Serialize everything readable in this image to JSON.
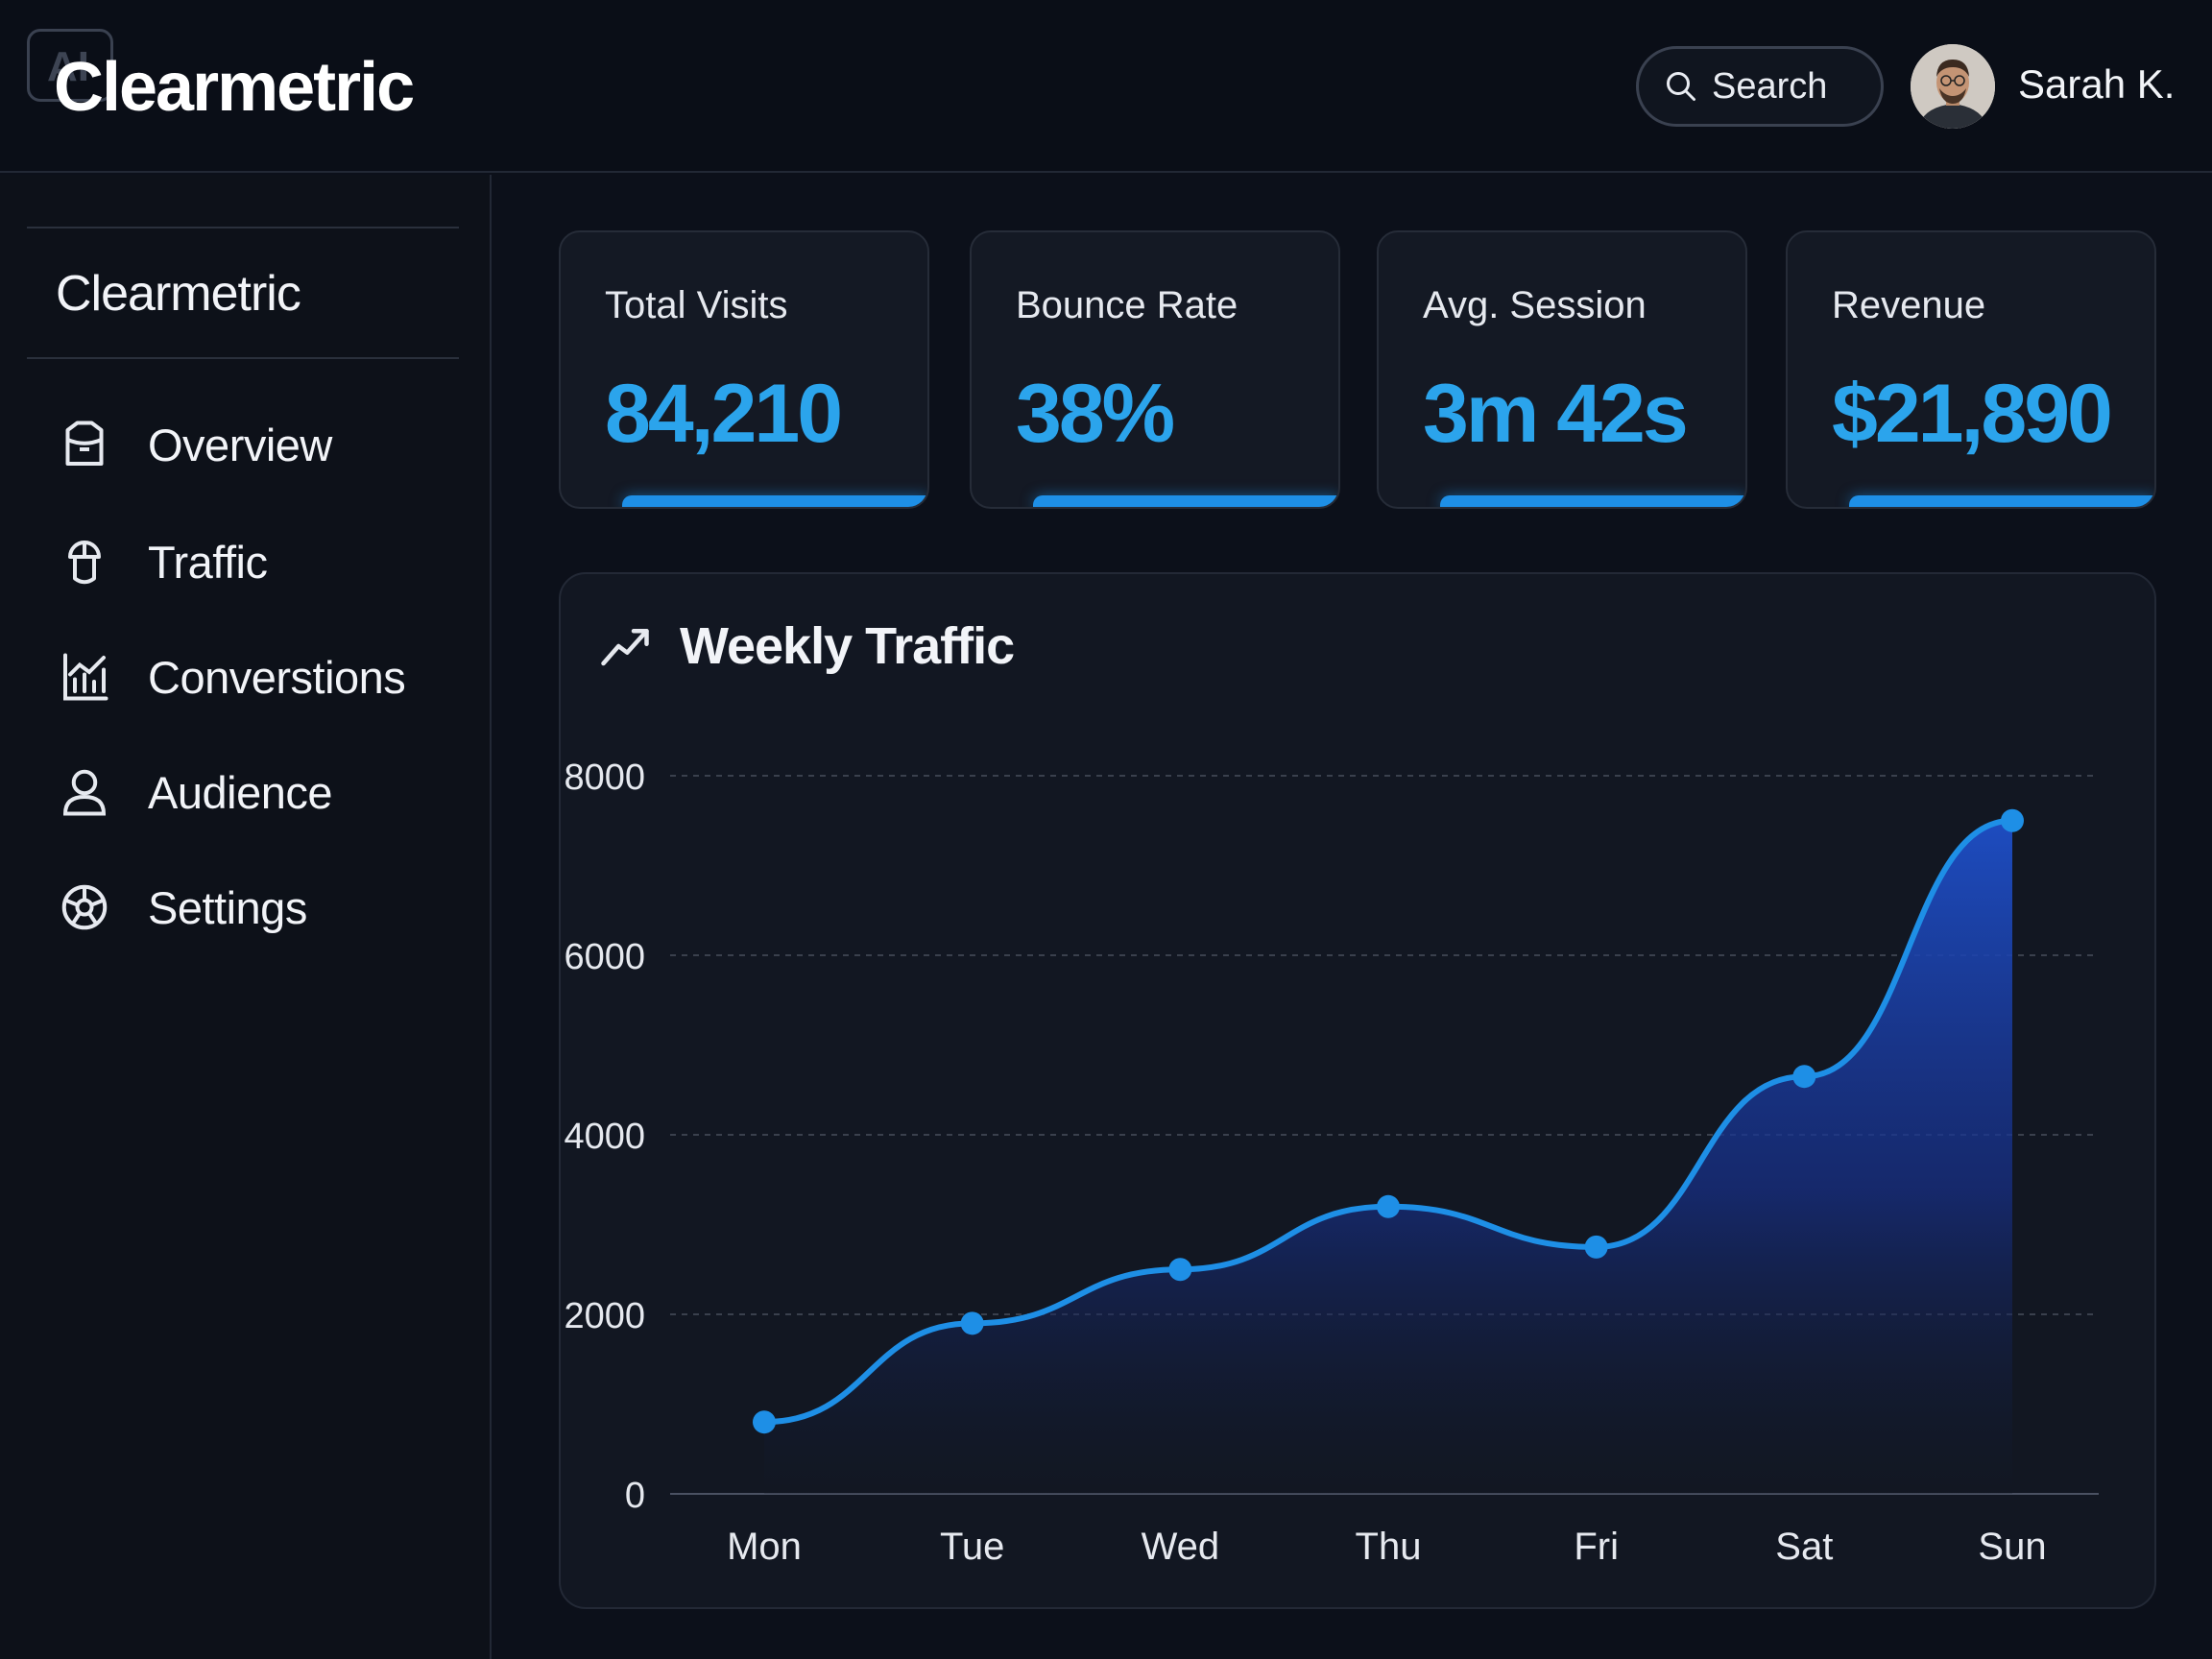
{
  "header": {
    "badge": "AI",
    "brand": "Clearmetric",
    "search_label": "Search",
    "user_name": "Sarah K."
  },
  "sidebar": {
    "brand": "Clearmetric",
    "items": [
      {
        "label": "Overview",
        "icon": "overview-icon"
      },
      {
        "label": "Traffic",
        "icon": "traffic-icon"
      },
      {
        "label": "Converstions",
        "icon": "conversions-icon"
      },
      {
        "label": "Audience",
        "icon": "audience-icon"
      },
      {
        "label": "Settings",
        "icon": "settings-icon"
      }
    ]
  },
  "kpis": [
    {
      "label": "Total Visits",
      "value": "84,210"
    },
    {
      "label": "Bounce Rate",
      "value": "38%"
    },
    {
      "label": "Avg. Session",
      "value": "3m 42s"
    },
    {
      "label": "Revenue",
      "value": "$21,890"
    }
  ],
  "colors": {
    "accent": "#2ba4ec",
    "line": "#1e8fe6",
    "background": "#0c101a"
  },
  "chart_data": {
    "type": "area",
    "title": "Weekly Traffic",
    "categories": [
      "Mon",
      "Tue",
      "Wed",
      "Thu",
      "Fri",
      "Sat",
      "Sun"
    ],
    "values": [
      800,
      1900,
      2500,
      3200,
      2750,
      4650,
      7500
    ],
    "ylim": [
      0,
      8000
    ],
    "yticks": [
      "0",
      "2000",
      "4000",
      "6000",
      "8000"
    ],
    "grid": true,
    "legend": "none"
  }
}
